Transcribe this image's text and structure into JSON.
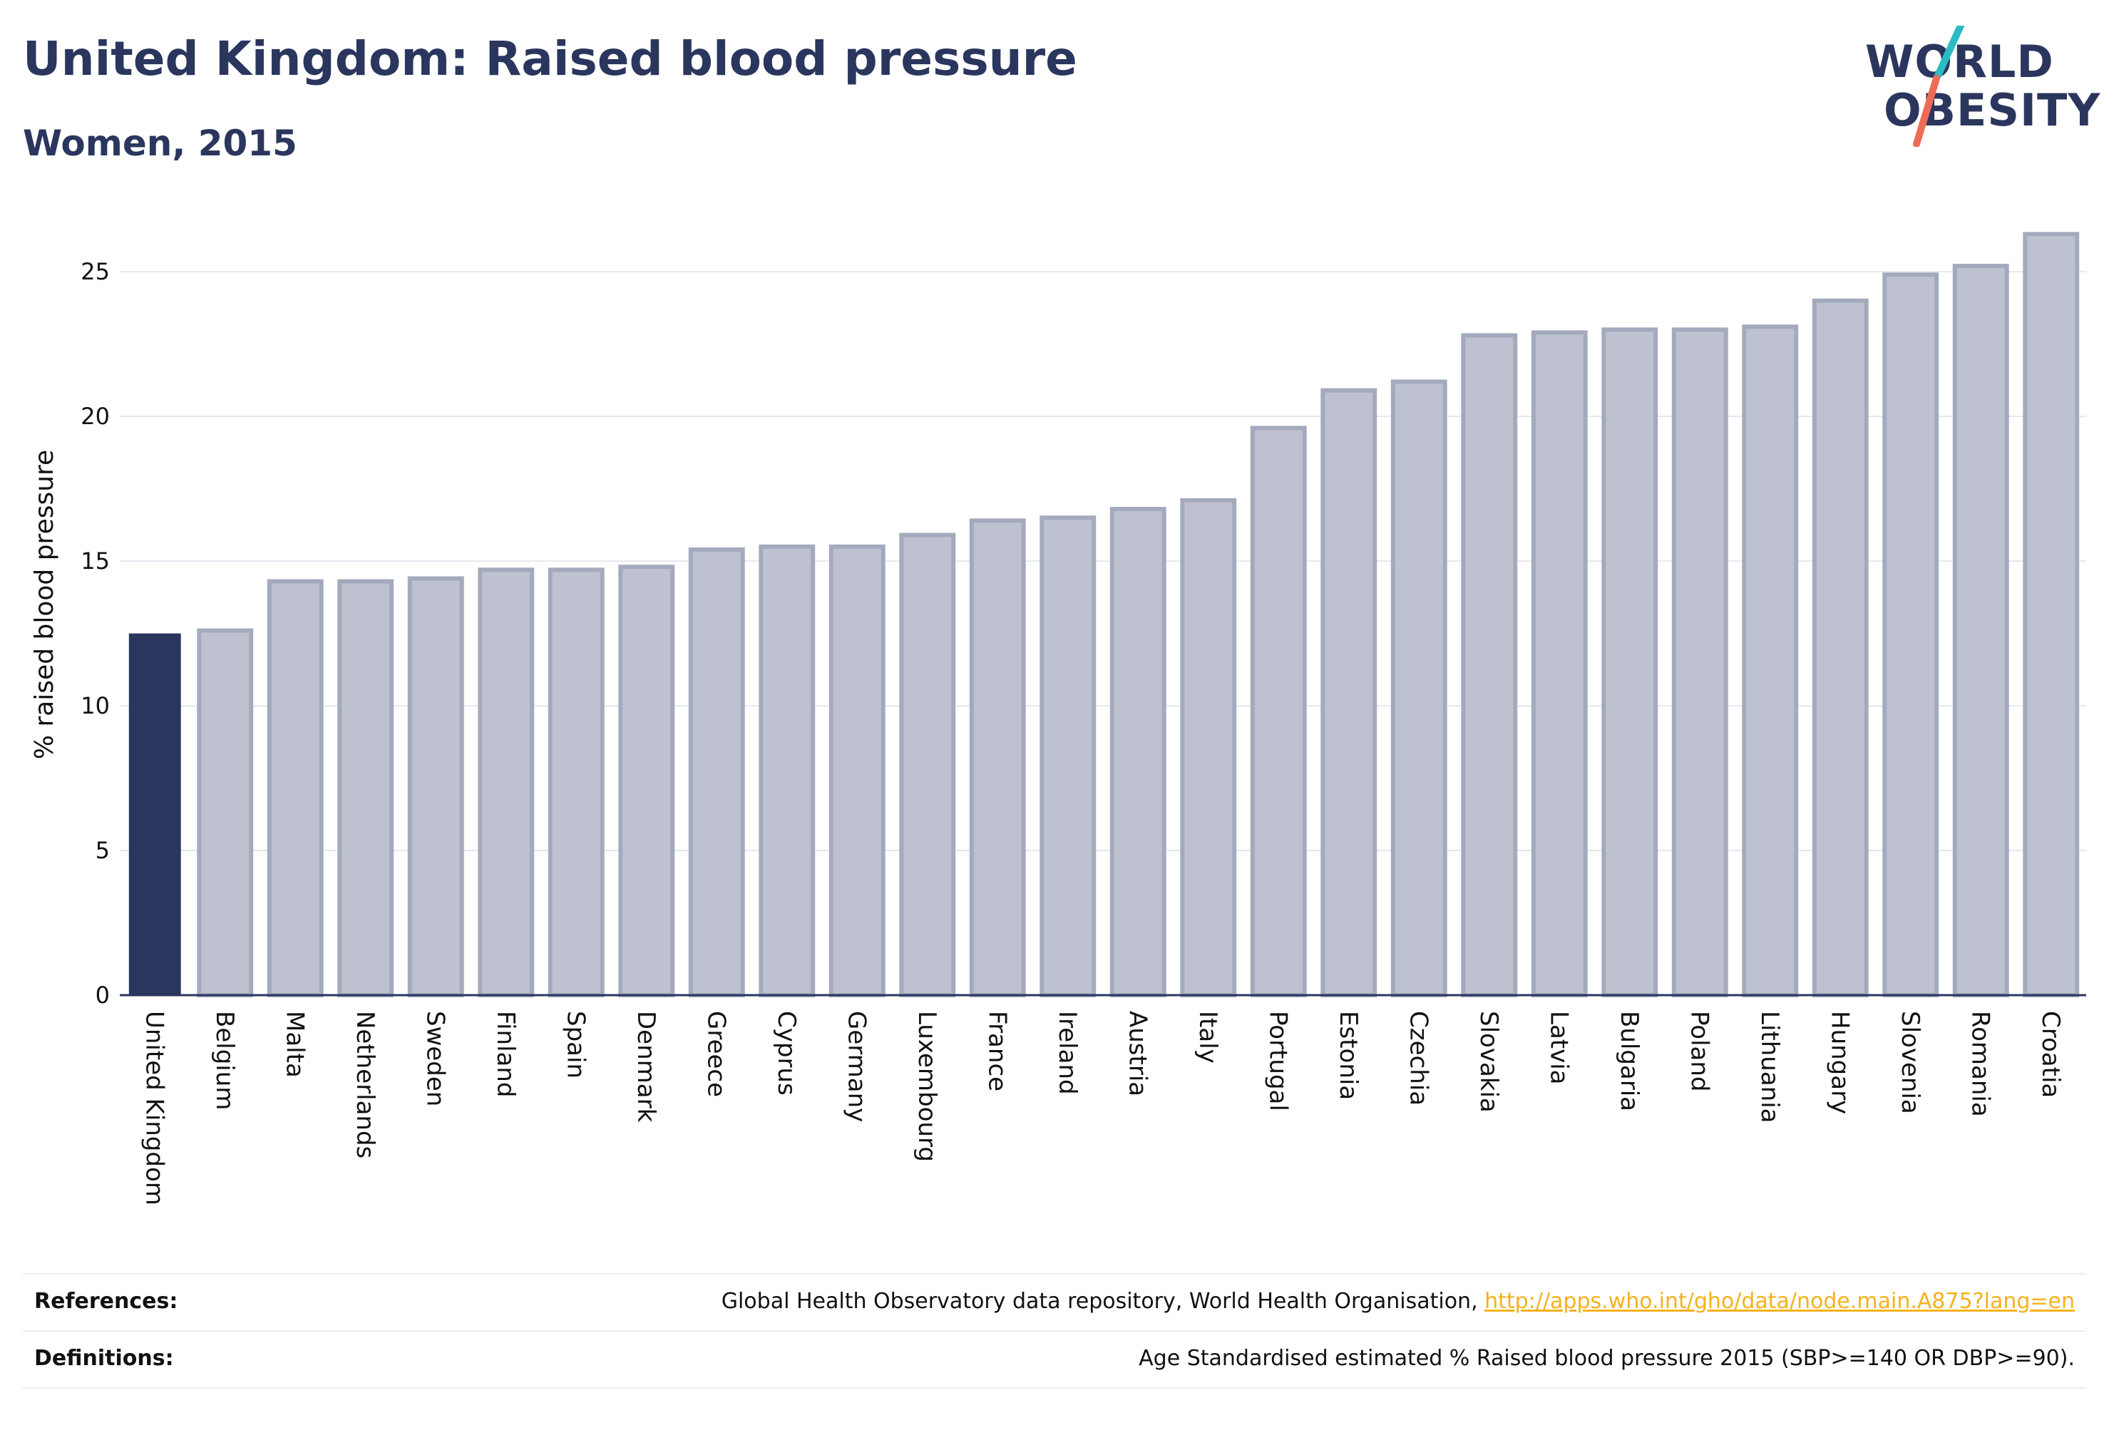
{
  "header": {
    "title": "United Kingdom: Raised blood pressure",
    "subtitle": "Women, 2015"
  },
  "logo": {
    "line1": "WORLD",
    "line2": "OBESITY",
    "colors": {
      "text": "#2b365e",
      "teal": "#2bbbc3",
      "coral": "#ef6b57"
    }
  },
  "colors": {
    "highlight": "#2b365e",
    "bar_fill": "#bec2d0",
    "bar_stroke": "#a4aabd",
    "grid": "#e6e8f0",
    "axis": "#2b365e"
  },
  "chart_data": {
    "type": "bar",
    "ylabel": "% raised blood pressure",
    "xlabel": "",
    "ylim": [
      0,
      27
    ],
    "yticks": [
      0,
      5,
      10,
      15,
      20,
      25
    ],
    "grid": true,
    "highlight_category": "United Kingdom",
    "categories": [
      "United Kingdom",
      "Belgium",
      "Malta",
      "Netherlands",
      "Sweden",
      "Finland",
      "Spain",
      "Denmark",
      "Greece",
      "Cyprus",
      "Germany",
      "Luxembourg",
      "France",
      "Ireland",
      "Austria",
      "Italy",
      "Portugal",
      "Estonia",
      "Czechia",
      "Slovakia",
      "Latvia",
      "Bulgaria",
      "Poland",
      "Lithuania",
      "Hungary",
      "Slovenia",
      "Romania",
      "Croatia"
    ],
    "values": [
      12.5,
      12.6,
      14.3,
      14.3,
      14.4,
      14.7,
      14.7,
      14.8,
      15.4,
      15.5,
      15.5,
      15.9,
      16.4,
      16.5,
      16.8,
      17.1,
      19.6,
      20.9,
      21.2,
      22.8,
      22.9,
      23.0,
      23.0,
      23.1,
      24.0,
      24.9,
      25.2,
      26.3
    ]
  },
  "footer": {
    "references_label": "References:",
    "references_text": "Global Health Observatory data repository, World Health Organisation, ",
    "references_link": "http://apps.who.int/gho/data/node.main.A875?lang=en",
    "definitions_label": "Definitions:",
    "definitions_text": "Age Standardised estimated % Raised blood pressure 2015 (SBP>=140 OR DBP>=90)."
  }
}
